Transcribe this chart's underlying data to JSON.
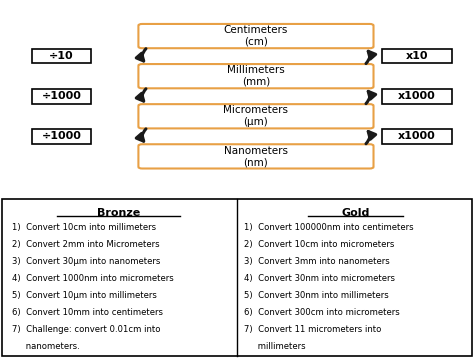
{
  "units": [
    {
      "label": "Centimeters\n(cm)"
    },
    {
      "label": "Millimeters\n(mm)"
    },
    {
      "label": "Micrometers\n(μm)"
    },
    {
      "label": "Nanometers\n(nm)"
    }
  ],
  "left_boxes": [
    {
      "label": "÷10"
    },
    {
      "label": "÷1000"
    },
    {
      "label": "÷1000"
    }
  ],
  "right_boxes": [
    {
      "label": "x10"
    },
    {
      "label": "x1000"
    },
    {
      "label": "x1000"
    }
  ],
  "box_color": "#E8A045",
  "arrow_color": "#1a1a1a",
  "bg_color": "#ffffff",
  "bronze_title": "Bronze",
  "gold_title": "Gold",
  "bronze_items": [
    "1)  Convert 10cm into millimeters",
    "2)  Convert 2mm into Micrometers",
    "3)  Convert 30μm into nanometers",
    "4)  Convert 1000nm into micrometers",
    "5)  Convert 10μm into millimeters",
    "6)  Convert 10mm into centimeters",
    "7)  Challenge: convert 0.01cm into",
    "     nanometers."
  ],
  "gold_items": [
    "1)  Convert 100000nm into centimeters",
    "2)  Convert 10cm into micrometers",
    "3)  Convert 3mm into nanometers",
    "4)  Convert 30nm into micrometers",
    "5)  Convert 30nm into millimeters",
    "6)  Convert 300cm into micrometers",
    "7)  Convert 11 micrometers into",
    "     millimeters"
  ]
}
